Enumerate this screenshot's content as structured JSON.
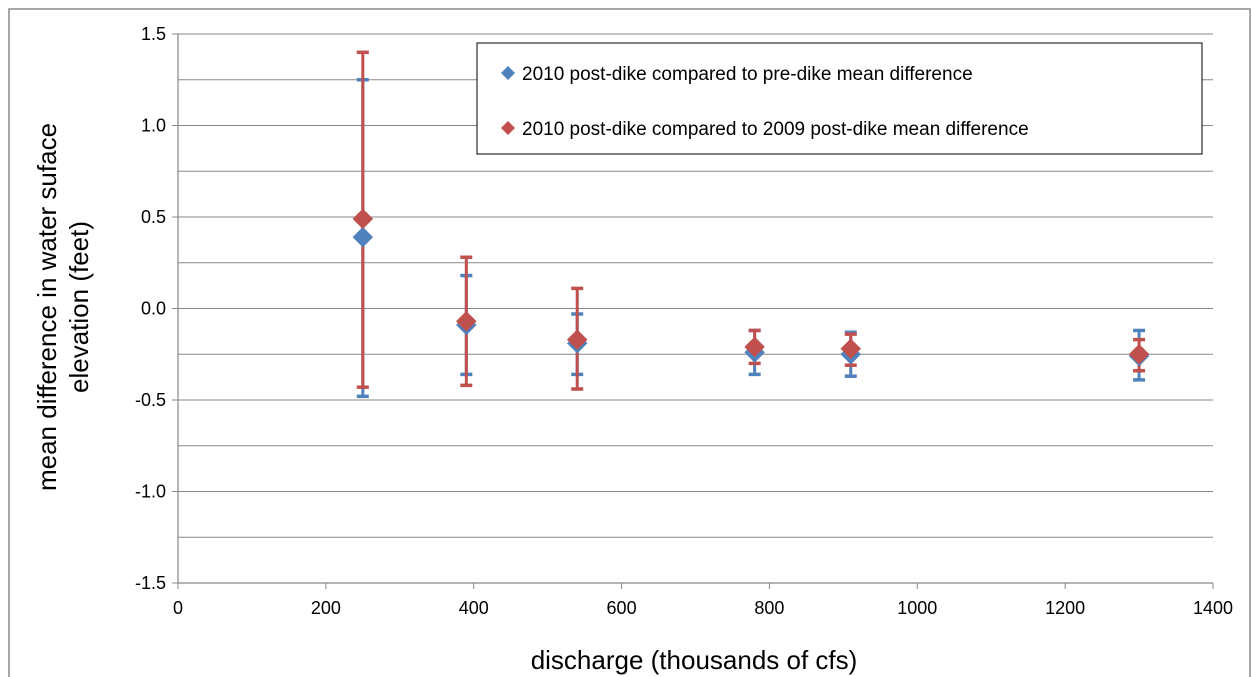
{
  "chart_data": {
    "type": "scatter",
    "title": "",
    "xlabel": "discharge (thousands of cfs)",
    "ylabel_lines": [
      "mean difference in water suface",
      "elevation (feet)"
    ],
    "xlim": [
      0,
      1400
    ],
    "ylim": [
      -1.5,
      1.5
    ],
    "x_ticks": [
      0,
      200,
      400,
      600,
      800,
      1000,
      1200,
      1400
    ],
    "y_ticks": [
      -1.5,
      -1.0,
      -0.5,
      0.0,
      0.5,
      1.0,
      1.5
    ],
    "x_tick_labels": [
      "0",
      "200",
      "400",
      "600",
      "800",
      "1000",
      "1200",
      "1400"
    ],
    "y_tick_labels": [
      "-1.5",
      "-1.0",
      "-0.5",
      "0.0",
      "0.5",
      "1.0",
      "1.5"
    ],
    "gridlines_y": [
      -1.25,
      -1.0,
      -0.75,
      -0.5,
      -0.25,
      0.0,
      0.25,
      0.5,
      0.75,
      1.0,
      1.25,
      1.5
    ],
    "legend_position": "top-right",
    "series": [
      {
        "name": "2010 post-dike compared to pre-dike mean difference",
        "color": "#4F81BD",
        "marker": "diamond",
        "points": [
          {
            "x": 250,
            "y": 0.39,
            "low": -0.48,
            "high": 1.25
          },
          {
            "x": 390,
            "y": -0.09,
            "low": -0.36,
            "high": 0.18
          },
          {
            "x": 540,
            "y": -0.19,
            "low": -0.36,
            "high": -0.03
          },
          {
            "x": 780,
            "y": -0.24,
            "low": -0.36,
            "high": -0.12
          },
          {
            "x": 910,
            "y": -0.25,
            "low": -0.37,
            "high": -0.13
          },
          {
            "x": 1300,
            "y": -0.26,
            "low": -0.39,
            "high": -0.12
          }
        ]
      },
      {
        "name": "2010 post-dike compared to 2009 post-dike mean difference",
        "color": "#C0504D",
        "marker": "diamond",
        "points": [
          {
            "x": 250,
            "y": 0.49,
            "low": -0.43,
            "high": 1.4
          },
          {
            "x": 390,
            "y": -0.07,
            "low": -0.42,
            "high": 0.28
          },
          {
            "x": 540,
            "y": -0.17,
            "low": -0.44,
            "high": 0.11
          },
          {
            "x": 780,
            "y": -0.21,
            "low": -0.3,
            "high": -0.12
          },
          {
            "x": 910,
            "y": -0.22,
            "low": -0.31,
            "high": -0.14
          },
          {
            "x": 1300,
            "y": -0.25,
            "low": -0.34,
            "high": -0.17
          }
        ]
      }
    ]
  }
}
